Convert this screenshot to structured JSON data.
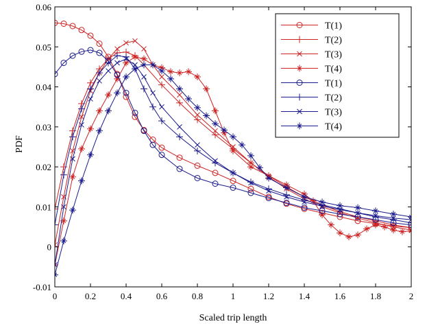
{
  "chart_data": {
    "type": "line",
    "xlabel": "Scaled trip length",
    "ylabel": "PDF",
    "xlim": [
      0,
      2
    ],
    "ylim": [
      -0.01,
      0.06
    ],
    "x_ticks": [
      0,
      0.2,
      0.4,
      0.6,
      0.8,
      1,
      1.2,
      1.4,
      1.6,
      1.8,
      2
    ],
    "x_tick_labels": [
      "0",
      "0.2",
      "0.4",
      "0.6",
      "0.8",
      "1",
      "1.2",
      "1.4",
      "1.6",
      "1.8",
      "2"
    ],
    "y_ticks": [
      -0.01,
      0,
      0.01,
      0.02,
      0.03,
      0.04,
      0.05,
      0.06
    ],
    "y_tick_labels": [
      "-0.01",
      "0",
      "0.01",
      "0.02",
      "0.03",
      "0.04",
      "0.05",
      "0.06"
    ],
    "grid": false,
    "legend_position": "top-right",
    "series": [
      {
        "name": "T(1)",
        "color": "#cc2222",
        "marker": "circle",
        "points": [
          [
            0,
            0.056
          ],
          [
            0.05,
            0.0558
          ],
          [
            0.1,
            0.0552
          ],
          [
            0.15,
            0.0542
          ],
          [
            0.2,
            0.0528
          ],
          [
            0.25,
            0.0508
          ],
          [
            0.3,
            0.0475
          ],
          [
            0.35,
            0.0432
          ],
          [
            0.4,
            0.0375
          ],
          [
            0.45,
            0.0325
          ],
          [
            0.5,
            0.0292
          ],
          [
            0.55,
            0.0268
          ],
          [
            0.6,
            0.0248
          ],
          [
            0.7,
            0.0223
          ],
          [
            0.8,
            0.0203
          ],
          [
            0.9,
            0.0185
          ],
          [
            1.0,
            0.0165
          ],
          [
            1.1,
            0.0145
          ],
          [
            1.2,
            0.0125
          ],
          [
            1.3,
            0.0108
          ],
          [
            1.4,
            0.0095
          ],
          [
            1.5,
            0.0085
          ],
          [
            1.6,
            0.0075
          ],
          [
            1.7,
            0.0065
          ],
          [
            1.8,
            0.0058
          ],
          [
            1.9,
            0.0052
          ],
          [
            2.0,
            0.0048
          ]
        ]
      },
      {
        "name": "T(2)",
        "color": "#cc2222",
        "marker": "plus",
        "points": [
          [
            0,
            0.0095
          ],
          [
            0.05,
            0.02
          ],
          [
            0.1,
            0.029
          ],
          [
            0.15,
            0.0358
          ],
          [
            0.2,
            0.041
          ],
          [
            0.25,
            0.0445
          ],
          [
            0.3,
            0.047
          ],
          [
            0.35,
            0.0485
          ],
          [
            0.4,
            0.0487
          ],
          [
            0.45,
            0.0478
          ],
          [
            0.5,
            0.0455
          ],
          [
            0.6,
            0.0405
          ],
          [
            0.7,
            0.036
          ],
          [
            0.8,
            0.0318
          ],
          [
            0.9,
            0.028
          ],
          [
            1.0,
            0.0245
          ],
          [
            1.1,
            0.021
          ],
          [
            1.2,
            0.0178
          ],
          [
            1.3,
            0.015
          ],
          [
            1.4,
            0.0125
          ],
          [
            1.5,
            0.0105
          ],
          [
            1.6,
            0.0088
          ],
          [
            1.7,
            0.0075
          ],
          [
            1.8,
            0.0065
          ],
          [
            1.9,
            0.0055
          ],
          [
            2.0,
            0.0048
          ]
        ]
      },
      {
        "name": "T(3)",
        "color": "#cc2222",
        "marker": "x",
        "points": [
          [
            0,
            0.0005
          ],
          [
            0.05,
            0.0125
          ],
          [
            0.1,
            0.024
          ],
          [
            0.15,
            0.0325
          ],
          [
            0.2,
            0.039
          ],
          [
            0.25,
            0.0435
          ],
          [
            0.3,
            0.047
          ],
          [
            0.35,
            0.0495
          ],
          [
            0.4,
            0.051
          ],
          [
            0.45,
            0.0515
          ],
          [
            0.5,
            0.0495
          ],
          [
            0.55,
            0.0455
          ],
          [
            0.6,
            0.0425
          ],
          [
            0.7,
            0.038
          ],
          [
            0.8,
            0.033
          ],
          [
            0.9,
            0.029
          ],
          [
            1.0,
            0.025
          ],
          [
            1.1,
            0.021
          ],
          [
            1.2,
            0.0175
          ],
          [
            1.3,
            0.0145
          ],
          [
            1.4,
            0.012
          ],
          [
            1.5,
            0.01
          ],
          [
            1.6,
            0.0085
          ],
          [
            1.7,
            0.0072
          ],
          [
            1.8,
            0.006
          ],
          [
            1.9,
            0.005
          ],
          [
            2.0,
            0.0042
          ]
        ]
      },
      {
        "name": "T(4)",
        "color": "#cc2222",
        "marker": "star",
        "points": [
          [
            0,
            -0.0045
          ],
          [
            0.05,
            0.0065
          ],
          [
            0.1,
            0.0175
          ],
          [
            0.15,
            0.0245
          ],
          [
            0.2,
            0.0295
          ],
          [
            0.25,
            0.034
          ],
          [
            0.3,
            0.038
          ],
          [
            0.35,
            0.042
          ],
          [
            0.4,
            0.046
          ],
          [
            0.45,
            0.0475
          ],
          [
            0.5,
            0.047
          ],
          [
            0.55,
            0.0455
          ],
          [
            0.6,
            0.0448
          ],
          [
            0.65,
            0.0438
          ],
          [
            0.7,
            0.0435
          ],
          [
            0.75,
            0.0438
          ],
          [
            0.8,
            0.0425
          ],
          [
            0.85,
            0.0395
          ],
          [
            0.9,
            0.034
          ],
          [
            0.95,
            0.0285
          ],
          [
            1.0,
            0.024
          ],
          [
            1.1,
            0.02
          ],
          [
            1.2,
            0.0178
          ],
          [
            1.3,
            0.0155
          ],
          [
            1.4,
            0.0132
          ],
          [
            1.45,
            0.0115
          ],
          [
            1.5,
            0.008
          ],
          [
            1.55,
            0.0055
          ],
          [
            1.6,
            0.0035
          ],
          [
            1.65,
            0.0025
          ],
          [
            1.7,
            0.003
          ],
          [
            1.75,
            0.0045
          ],
          [
            1.8,
            0.0055
          ],
          [
            1.85,
            0.005
          ],
          [
            1.9,
            0.0042
          ],
          [
            1.95,
            0.0038
          ],
          [
            2.0,
            0.004
          ]
        ]
      },
      {
        "name": "T(1)",
        "color": "#1a1a8c",
        "marker": "circle",
        "points": [
          [
            0,
            0.0432
          ],
          [
            0.05,
            0.046
          ],
          [
            0.1,
            0.0478
          ],
          [
            0.15,
            0.0488
          ],
          [
            0.2,
            0.0492
          ],
          [
            0.25,
            0.0485
          ],
          [
            0.3,
            0.0465
          ],
          [
            0.35,
            0.043
          ],
          [
            0.4,
            0.0385
          ],
          [
            0.45,
            0.0335
          ],
          [
            0.5,
            0.029
          ],
          [
            0.55,
            0.0255
          ],
          [
            0.6,
            0.023
          ],
          [
            0.7,
            0.0195
          ],
          [
            0.8,
            0.0172
          ],
          [
            0.9,
            0.0158
          ],
          [
            1.0,
            0.0148
          ],
          [
            1.1,
            0.0135
          ],
          [
            1.2,
            0.0122
          ],
          [
            1.3,
            0.011
          ],
          [
            1.4,
            0.0098
          ],
          [
            1.5,
            0.009
          ],
          [
            1.6,
            0.0082
          ],
          [
            1.7,
            0.0075
          ],
          [
            1.8,
            0.0068
          ],
          [
            1.9,
            0.006
          ],
          [
            2.0,
            0.0055
          ]
        ]
      },
      {
        "name": "T(2)",
        "color": "#1a1a8c",
        "marker": "plus",
        "points": [
          [
            0,
            0.0055
          ],
          [
            0.05,
            0.018
          ],
          [
            0.1,
            0.0275
          ],
          [
            0.15,
            0.0345
          ],
          [
            0.2,
            0.0395
          ],
          [
            0.25,
            0.0435
          ],
          [
            0.3,
            0.046
          ],
          [
            0.35,
            0.0478
          ],
          [
            0.4,
            0.0475
          ],
          [
            0.45,
            0.0445
          ],
          [
            0.5,
            0.0395
          ],
          [
            0.55,
            0.035
          ],
          [
            0.6,
            0.0315
          ],
          [
            0.7,
            0.0275
          ],
          [
            0.8,
            0.024
          ],
          [
            0.9,
            0.021
          ],
          [
            1.0,
            0.0185
          ],
          [
            1.1,
            0.0162
          ],
          [
            1.2,
            0.0145
          ],
          [
            1.3,
            0.013
          ],
          [
            1.4,
            0.0117
          ],
          [
            1.5,
            0.0105
          ],
          [
            1.6,
            0.0095
          ],
          [
            1.7,
            0.0085
          ],
          [
            1.8,
            0.0075
          ],
          [
            1.9,
            0.0068
          ],
          [
            2.0,
            0.006
          ]
        ]
      },
      {
        "name": "T(3)",
        "color": "#1a1a8c",
        "marker": "x",
        "points": [
          [
            0,
            -0.0045
          ],
          [
            0.05,
            0.01
          ],
          [
            0.1,
            0.022
          ],
          [
            0.15,
            0.0305
          ],
          [
            0.2,
            0.037
          ],
          [
            0.25,
            0.0415
          ],
          [
            0.3,
            0.044
          ],
          [
            0.35,
            0.046
          ],
          [
            0.4,
            0.047
          ],
          [
            0.45,
            0.0455
          ],
          [
            0.5,
            0.0425
          ],
          [
            0.55,
            0.0385
          ],
          [
            0.6,
            0.035
          ],
          [
            0.7,
            0.03
          ],
          [
            0.8,
            0.0255
          ],
          [
            0.9,
            0.0215
          ],
          [
            1.0,
            0.0185
          ],
          [
            1.1,
            0.016
          ],
          [
            1.2,
            0.014
          ],
          [
            1.3,
            0.0125
          ],
          [
            1.4,
            0.0112
          ],
          [
            1.5,
            0.0102
          ],
          [
            1.6,
            0.0093
          ],
          [
            1.7,
            0.0085
          ],
          [
            1.8,
            0.0078
          ],
          [
            1.9,
            0.0072
          ],
          [
            2.0,
            0.0068
          ]
        ]
      },
      {
        "name": "T(4)",
        "color": "#1a1a8c",
        "marker": "star",
        "points": [
          [
            0,
            -0.007
          ],
          [
            0.05,
            0.0015
          ],
          [
            0.1,
            0.0092
          ],
          [
            0.15,
            0.0165
          ],
          [
            0.2,
            0.023
          ],
          [
            0.25,
            0.029
          ],
          [
            0.3,
            0.034
          ],
          [
            0.35,
            0.0385
          ],
          [
            0.4,
            0.0425
          ],
          [
            0.45,
            0.0445
          ],
          [
            0.5,
            0.0455
          ],
          [
            0.55,
            0.0455
          ],
          [
            0.6,
            0.044
          ],
          [
            0.65,
            0.042
          ],
          [
            0.7,
            0.0395
          ],
          [
            0.75,
            0.037
          ],
          [
            0.8,
            0.0348
          ],
          [
            0.85,
            0.0328
          ],
          [
            0.9,
            0.0308
          ],
          [
            0.95,
            0.0292
          ],
          [
            1.0,
            0.0275
          ],
          [
            1.05,
            0.0255
          ],
          [
            1.1,
            0.0228
          ],
          [
            1.15,
            0.0198
          ],
          [
            1.2,
            0.0172
          ],
          [
            1.3,
            0.0148
          ],
          [
            1.4,
            0.0125
          ],
          [
            1.5,
            0.0112
          ],
          [
            1.6,
            0.0103
          ],
          [
            1.7,
            0.0098
          ],
          [
            1.8,
            0.009
          ],
          [
            1.9,
            0.0082
          ],
          [
            2.0,
            0.0075
          ]
        ]
      }
    ]
  }
}
